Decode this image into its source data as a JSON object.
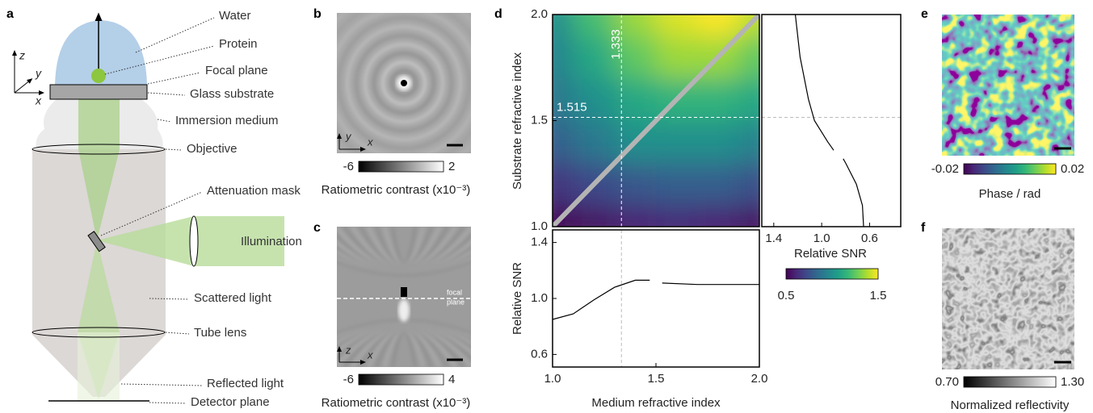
{
  "panel_labels": [
    "a",
    "b",
    "c",
    "d",
    "e",
    "f"
  ],
  "diagram": {
    "axes": [
      "z",
      "y",
      "x"
    ],
    "labels": [
      "Water",
      "Protein",
      "Focal plane",
      "Glass substrate",
      "Immersion medium",
      "Objective",
      "Attenuation mask",
      "Illumination",
      "Scattered light",
      "Tube lens",
      "Reflected light",
      "Detector plane"
    ]
  },
  "image_b": {
    "axes": [
      "y",
      "x"
    ],
    "colorbar_ticks": [
      -6,
      2
    ],
    "colorbar_label": "Ratiometric contrast (x10⁻³)"
  },
  "image_c": {
    "axes": [
      "z",
      "x"
    ],
    "annotation": [
      "focal",
      "plane"
    ],
    "colorbar_ticks": [
      -6,
      4
    ],
    "colorbar_label": "Ratiometric contrast (x10⁻³)"
  },
  "image_e": {
    "colorbar_ticks": [
      -0.02,
      0.02
    ],
    "colorbar_label": "Phase / rad"
  },
  "image_f": {
    "colorbar_ticks": [
      {
        "value": 0.7,
        "label": "0.70"
      },
      {
        "value": 1.3,
        "label": "1.30"
      }
    ],
    "colorbar_label": "Normalized reflectivity"
  },
  "chart_data": [
    {
      "type": "heatmap",
      "ylabel": "Substrate refractive index",
      "x": [
        1.0,
        1.2,
        1.4,
        1.6,
        1.8,
        2.0
      ],
      "y": [
        2.0,
        1.8,
        1.6,
        1.4,
        1.2,
        1.0
      ],
      "z": [
        [
          1.0,
          1.2,
          1.35,
          1.45,
          1.5,
          1.4
        ],
        [
          0.95,
          1.1,
          1.25,
          1.35,
          1.35,
          1.25
        ],
        [
          0.9,
          1.0,
          1.1,
          1.15,
          1.15,
          1.1
        ],
        [
          0.8,
          0.9,
          1.0,
          1.0,
          1.0,
          0.95
        ],
        [
          0.65,
          0.72,
          0.78,
          0.8,
          0.8,
          0.75
        ],
        [
          0.5,
          0.55,
          0.6,
          0.62,
          0.6,
          0.55
        ]
      ],
      "xlim": [
        1,
        2
      ],
      "ylim": [
        1,
        2
      ],
      "yticks": [
        {
          "value": 1,
          "label": "1.0"
        },
        1.5,
        {
          "value": 2,
          "label": "2.0"
        }
      ],
      "ref_x": 1.333,
      "ref_y": 1.515,
      "colormap": "viridis",
      "colorbar_ticks": [
        0.5,
        1.5
      ]
    },
    {
      "type": "line",
      "orientation": "horizontal",
      "xlabel": "Relative SNR",
      "y": [
        1.0,
        1.1,
        1.2,
        1.3,
        1.32,
        1.333,
        1.36,
        1.4,
        1.5,
        1.6,
        1.8,
        2.0
      ],
      "series": [
        {
          "color": "#000000",
          "values": [
            0.65,
            0.66,
            0.71,
            0.8,
            0.82,
            null,
            0.9,
            0.95,
            1.06,
            1.11,
            1.18,
            1.22
          ]
        }
      ],
      "xlim": [
        1.5,
        0.34
      ],
      "ylim": [
        1,
        2
      ],
      "xticks": [
        1.4,
        {
          "value": 1,
          "label": "1.0"
        },
        0.6
      ]
    },
    {
      "type": "line",
      "xlabel": "Medium refractive index",
      "ylabel": "Relative SNR",
      "x": [
        1.0,
        1.1,
        1.2,
        1.3,
        1.4,
        1.47,
        1.515,
        1.53,
        1.7,
        2.0
      ],
      "series": [
        {
          "color": "#000000",
          "values": [
            0.85,
            0.89,
            0.99,
            1.08,
            1.13,
            1.13,
            null,
            1.11,
            1.1,
            1.1
          ]
        }
      ],
      "xlim": [
        1,
        2
      ],
      "ylim": [
        0.51,
        1.49
      ],
      "xticks": [
        {
          "value": 1,
          "label": "1.0"
        },
        1.5,
        {
          "value": 2,
          "label": "2.0"
        }
      ],
      "yticks": [
        0.6,
        {
          "value": 1,
          "label": "1.0"
        },
        1.4
      ]
    }
  ]
}
